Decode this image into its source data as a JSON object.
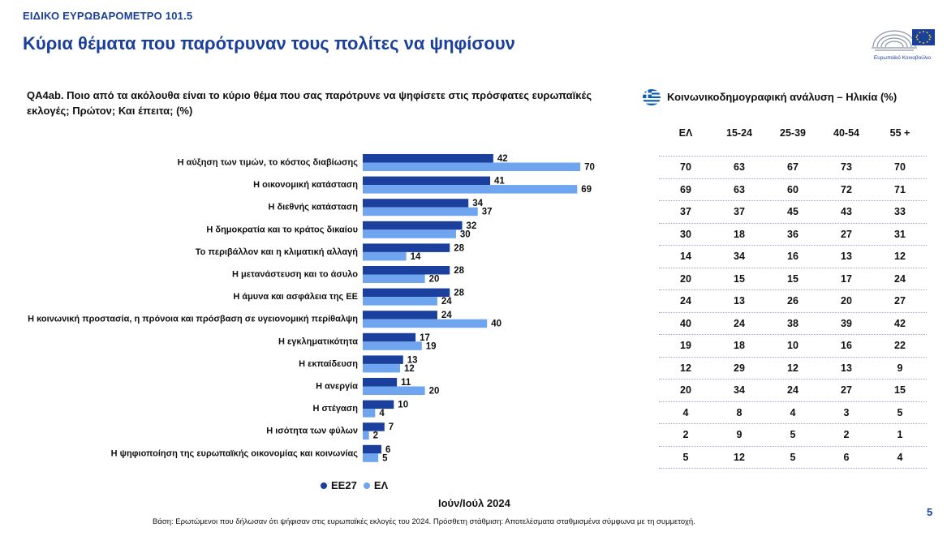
{
  "header": {
    "supertitle": "ΕΙΔΙΚΟ ΕΥΡΩΒΑΡΟΜΕΤΡΟ 101.5",
    "title": "Κύρια θέματα που παρότρυναν τους πολίτες να ψηφίσουν",
    "logo_text": "Ευρωπαϊκό Κοινοβούλιο"
  },
  "question": "QA4ab. Ποιο από τα ακόλουθα είναι το κύριο θέμα που σας παρότρυνε να ψηφίσετε στις πρόσφατες ευρωπαϊκές εκλογές; Πρώτον; Και έπειτα; (%)",
  "table": {
    "title": "Κοινωνικοδημογραφική ανάλυση – Ηλικία (%)",
    "columns": [
      "ΕΛ",
      "15-24",
      "25-39",
      "40-54",
      "55 +"
    ],
    "rows": [
      [
        "70",
        "63",
        "67",
        "73",
        "70"
      ],
      [
        "69",
        "63",
        "60",
        "72",
        "71"
      ],
      [
        "37",
        "37",
        "45",
        "43",
        "33"
      ],
      [
        "30",
        "18",
        "36",
        "27",
        "31"
      ],
      [
        "14",
        "34",
        "16",
        "13",
        "12"
      ],
      [
        "20",
        "15",
        "15",
        "17",
        "24"
      ],
      [
        "24",
        "13",
        "26",
        "20",
        "27"
      ],
      [
        "40",
        "24",
        "38",
        "39",
        "42"
      ],
      [
        "19",
        "18",
        "10",
        "16",
        "22"
      ],
      [
        "12",
        "29",
        "12",
        "13",
        "9"
      ],
      [
        "20",
        "34",
        "24",
        "27",
        "15"
      ],
      [
        "4",
        "8",
        "4",
        "3",
        "5"
      ],
      [
        "2",
        "9",
        "5",
        "2",
        "1"
      ],
      [
        "5",
        "12",
        "5",
        "6",
        "4"
      ]
    ]
  },
  "colors": {
    "eu27": "#1b3f9c",
    "el": "#6fa4ee",
    "title": "#1b3f9c"
  },
  "chart_data": {
    "type": "bar",
    "orientation": "horizontal",
    "categories": [
      "Η αύξηση των τιμών, το κόστος διαβίωσης",
      "Η οικονομική κατάσταση",
      "Η διεθνής κατάσταση",
      "Η δημοκρατία και το κράτος δικαίου",
      "Το περιβάλλον και η κλιματική αλλαγή",
      "Η μετανάστευση και το άσυλο",
      "Η άμυνα και ασφάλεια της ΕΕ",
      "Η κοινωνική προστασία, η πρόνοια και πρόσβαση σε υγειονομική περίθαλψη",
      "Η εγκληματικότητα",
      "Η εκπαίδευση",
      "Η ανεργία",
      "Η στέγαση",
      "Η ισότητα των φύλων",
      "Η ψηφιοποίηση της ευρωπαϊκής οικονομίας και κοινωνίας"
    ],
    "series": [
      {
        "name": "ΕΕ27",
        "values": [
          42,
          41,
          34,
          32,
          28,
          28,
          28,
          24,
          17,
          13,
          11,
          10,
          7,
          6
        ]
      },
      {
        "name": "ΕΛ",
        "values": [
          70,
          69,
          37,
          30,
          14,
          20,
          24,
          40,
          19,
          12,
          20,
          4,
          2,
          5
        ]
      }
    ],
    "xlim": [
      0,
      70
    ],
    "legend_position": "bottom",
    "grid": false
  },
  "footer": {
    "period": "Ιούν/Ιούλ 2024",
    "base": "Βάση: Ερωτώμενοι που δήλωσαν ότι ψήφισαν στις ευρωπαϊκές εκλογές του 2024. Πρόσθετη στάθμιση: Αποτελέσματα σταθμισμένα σύμφωνα με τη συμμετοχή.",
    "page": "5"
  }
}
